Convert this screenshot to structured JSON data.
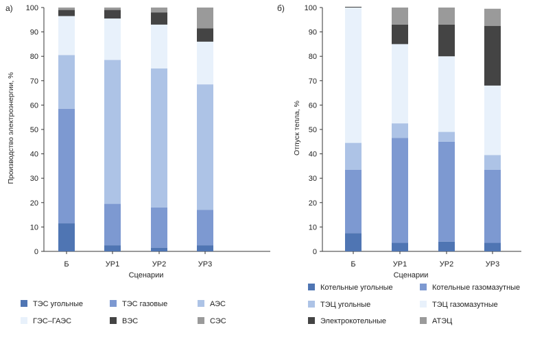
{
  "chart_data": [
    {
      "panel_label": "а)",
      "type": "bar",
      "stacked": true,
      "xlabel": "Сценарии",
      "ylabel": "Производство электроэнергии, %",
      "ylim": [
        0,
        100
      ],
      "yticks": [
        0,
        10,
        20,
        30,
        40,
        50,
        60,
        70,
        80,
        90,
        100
      ],
      "grid": false,
      "legend_position": "bottom",
      "categories": [
        "Б",
        "УР1",
        "УР2",
        "УР3"
      ],
      "series": [
        {
          "name": "ТЭС угольные",
          "color": "#4f75b3",
          "values": [
            11.5,
            2.5,
            1.5,
            2.5
          ]
        },
        {
          "name": "ТЭС газовые",
          "color": "#7d99d1",
          "values": [
            47,
            17,
            16.5,
            14.5
          ]
        },
        {
          "name": "АЭС",
          "color": "#adc3e6",
          "values": [
            22,
            59,
            57,
            51.5
          ]
        },
        {
          "name": "ГЭС–ГАЭС",
          "color": "#e8f1fb",
          "values": [
            16,
            17,
            18,
            17.5
          ]
        },
        {
          "name": "ВЭС",
          "color": "#444444",
          "values": [
            2.5,
            3.5,
            5,
            5.5
          ]
        },
        {
          "name": "СЭС",
          "color": "#9a9a9a",
          "values": [
            1,
            1,
            2,
            8.5
          ]
        }
      ]
    },
    {
      "panel_label": "б)",
      "type": "bar",
      "stacked": true,
      "xlabel": "Сценарии",
      "ylabel": "Отпуск тепла, %",
      "ylim": [
        0,
        100
      ],
      "yticks": [
        0,
        10,
        20,
        30,
        40,
        50,
        60,
        70,
        80,
        90,
        100
      ],
      "grid": false,
      "legend_position": "bottom",
      "categories": [
        "Б",
        "УР1",
        "УР2",
        "УР3"
      ],
      "series": [
        {
          "name": "Котельные угольные",
          "color": "#4f75b3",
          "values": [
            7.5,
            3.5,
            4,
            3.5
          ]
        },
        {
          "name": "Котельные газомазутные",
          "color": "#7d99d1",
          "values": [
            26,
            43,
            41,
            30
          ]
        },
        {
          "name": "ТЭЦ угольные",
          "color": "#adc3e6",
          "values": [
            11,
            6,
            4,
            6
          ]
        },
        {
          "name": "ТЭЦ газомазутные",
          "color": "#e8f1fb",
          "values": [
            55.5,
            32.5,
            31,
            28.5
          ]
        },
        {
          "name": "Электрокотельные",
          "color": "#444444",
          "values": [
            0.3,
            8,
            13,
            24.5
          ]
        },
        {
          "name": "АТЭЦ",
          "color": "#9a9a9a",
          "values": [
            0,
            7,
            7,
            7
          ]
        }
      ]
    }
  ]
}
